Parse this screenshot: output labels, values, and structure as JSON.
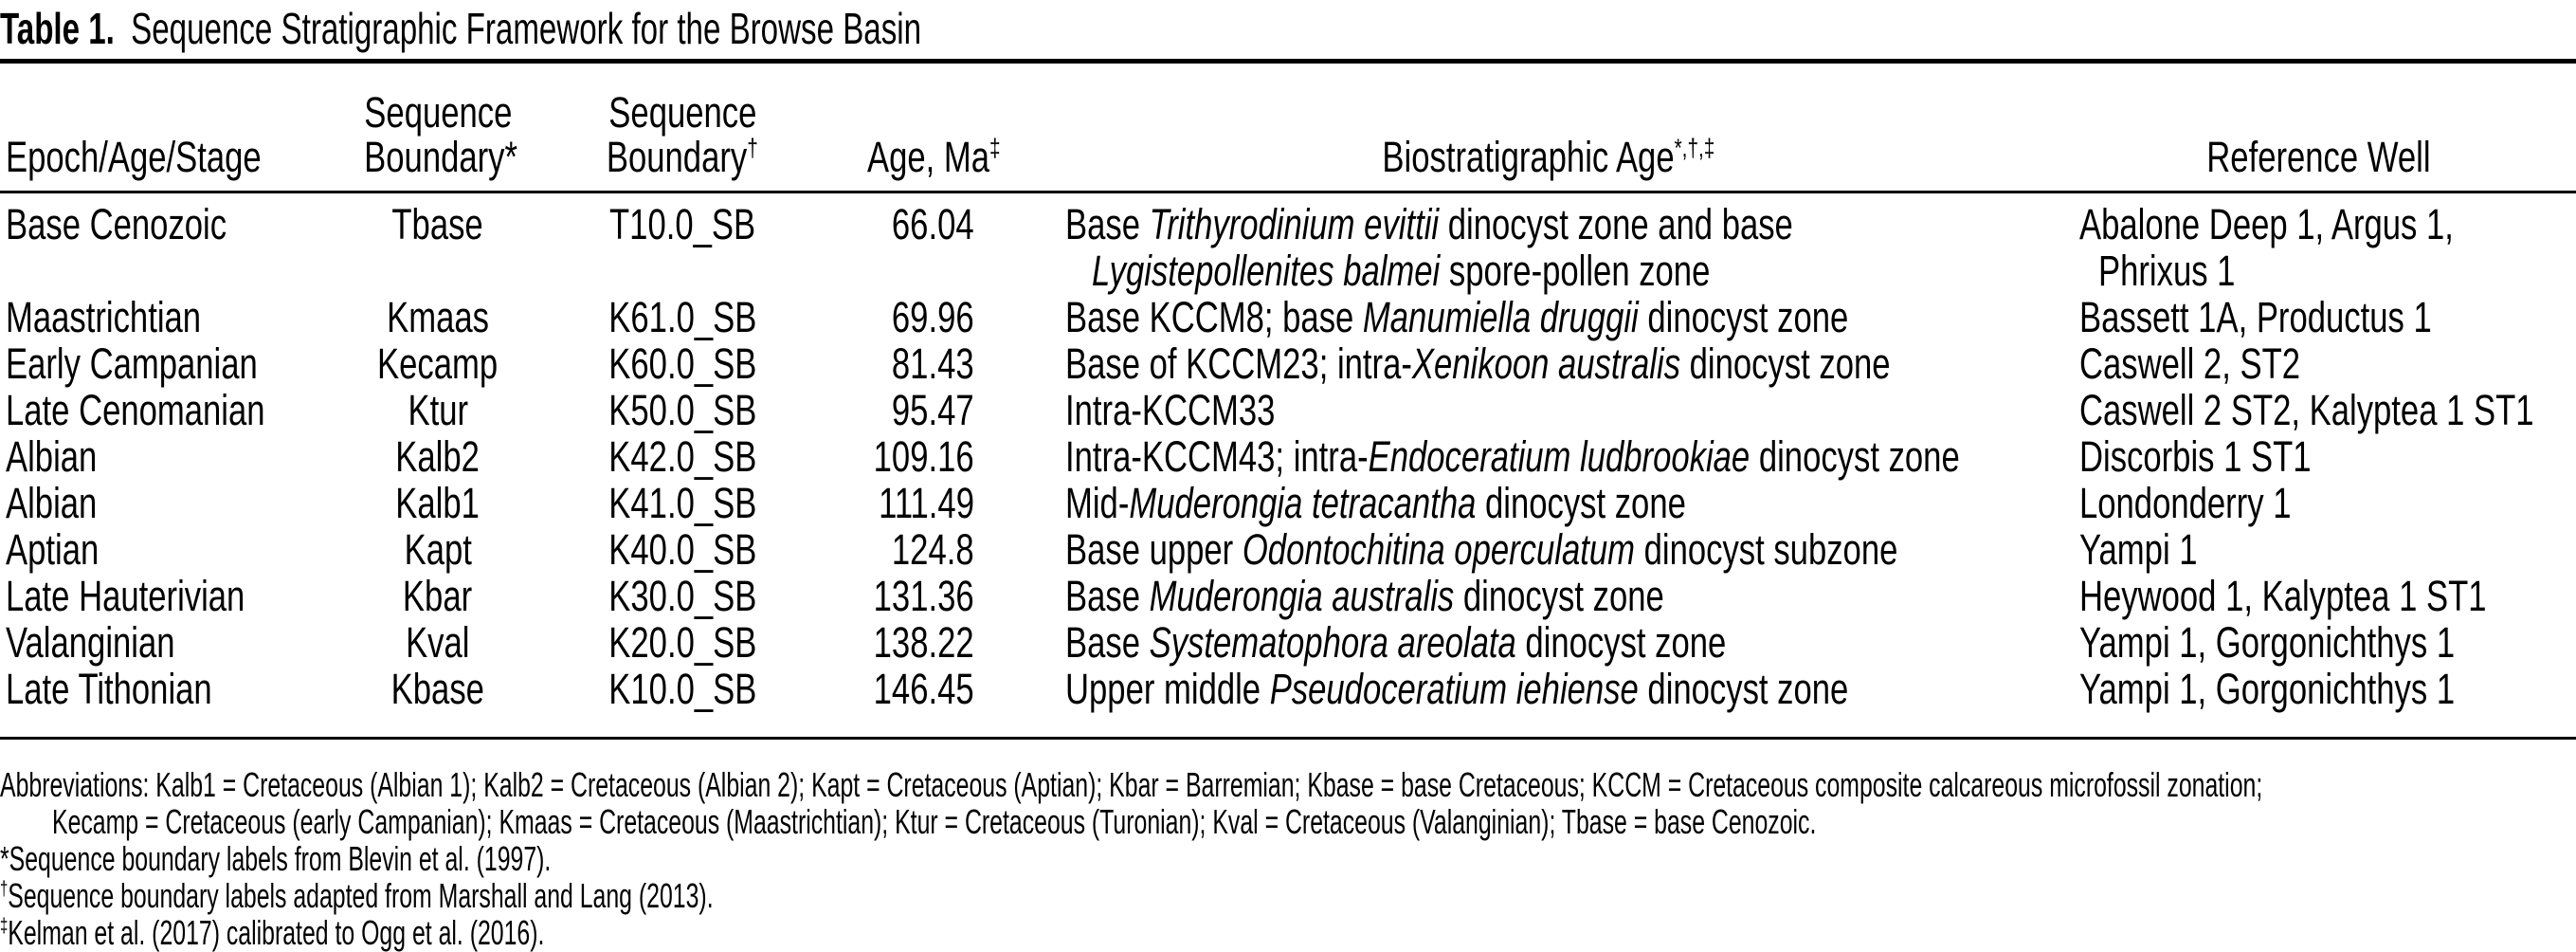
{
  "title": {
    "bold": "Table 1.",
    "text": "Sequence Stratigraphic Framework for the Browse Basin"
  },
  "table": {
    "headers": {
      "epoch": "Epoch/Age/Stage",
      "sb_blevin": {
        "line1": "Sequence",
        "line2": "Boundary*"
      },
      "sb_marshall": {
        "line1": "Sequence",
        "line2": "Boundary",
        "sup": "†"
      },
      "age": {
        "text": "Age, Ma",
        "sup": "‡"
      },
      "bio": {
        "text": "Biostratigraphic Age",
        "sup": "*,†,‡"
      },
      "well": "Reference Well"
    },
    "rows": [
      {
        "epoch": "Base Cenozoic",
        "sb1": "Tbase",
        "sb2": "T10.0_SB",
        "age": "66.04",
        "bio": [
          [
            {
              "t": "Base "
            },
            {
              "t": "Trithyrodinium evittii",
              "i": true
            },
            {
              "t": " dinocyst zone and base"
            }
          ],
          [
            {
              "t": "Lygistepollenites balmei",
              "i": true
            },
            {
              "t": " spore-pollen zone"
            }
          ]
        ],
        "well": [
          "Abalone Deep 1, Argus 1,",
          "Phrixus 1"
        ]
      },
      {
        "epoch": "Maastrichtian",
        "sb1": "Kmaas",
        "sb2": "K61.0_SB",
        "age": "69.96",
        "bio": [
          [
            {
              "t": "Base KCCM8; base "
            },
            {
              "t": "Manumiella druggii",
              "i": true
            },
            {
              "t": " dinocyst zone"
            }
          ]
        ],
        "well": [
          "Bassett 1A, Productus 1"
        ]
      },
      {
        "epoch": "Early Campanian",
        "sb1": "Kecamp",
        "sb2": "K60.0_SB",
        "age": "81.43",
        "bio": [
          [
            {
              "t": "Base of KCCM23; intra-"
            },
            {
              "t": "Xenikoon australis",
              "i": true
            },
            {
              "t": " dinocyst zone"
            }
          ]
        ],
        "well": [
          "Caswell 2, ST2"
        ]
      },
      {
        "epoch": "Late Cenomanian",
        "sb1": "Ktur",
        "sb2": "K50.0_SB",
        "age": "95.47",
        "bio": [
          [
            {
              "t": "Intra-KCCM33"
            }
          ]
        ],
        "well": [
          "Caswell 2 ST2, Kalyptea 1 ST1"
        ]
      },
      {
        "epoch": "Albian",
        "sb1": "Kalb2",
        "sb2": "K42.0_SB",
        "age": "109.16",
        "bio": [
          [
            {
              "t": "Intra-KCCM43; intra-"
            },
            {
              "t": "Endoceratium ludbrookiae",
              "i": true
            },
            {
              "t": " dinocyst zone"
            }
          ]
        ],
        "well": [
          "Discorbis 1 ST1"
        ]
      },
      {
        "epoch": "Albian",
        "sb1": "Kalb1",
        "sb2": "K41.0_SB",
        "age": "111.49",
        "bio": [
          [
            {
              "t": "Mid-"
            },
            {
              "t": "Muderongia tetracantha",
              "i": true
            },
            {
              "t": " dinocyst zone"
            }
          ]
        ],
        "well": [
          "Londonderry 1"
        ]
      },
      {
        "epoch": "Aptian",
        "sb1": "Kapt",
        "sb2": "K40.0_SB",
        "age": "124.8",
        "bio": [
          [
            {
              "t": "Base upper "
            },
            {
              "t": "Odontochitina operculatum",
              "i": true
            },
            {
              "t": " dinocyst subzone"
            }
          ]
        ],
        "well": [
          "Yampi 1"
        ]
      },
      {
        "epoch": "Late Hauterivian",
        "sb1": "Kbar",
        "sb2": "K30.0_SB",
        "age": "131.36",
        "bio": [
          [
            {
              "t": "Base "
            },
            {
              "t": "Muderongia australis",
              "i": true
            },
            {
              "t": " dinocyst zone"
            }
          ]
        ],
        "well": [
          "Heywood 1, Kalyptea 1 ST1"
        ]
      },
      {
        "epoch": "Valanginian",
        "sb1": "Kval",
        "sb2": "K20.0_SB",
        "age": "138.22",
        "bio": [
          [
            {
              "t": "Base "
            },
            {
              "t": "Systematophora areolata",
              "i": true
            },
            {
              "t": " dinocyst zone"
            }
          ]
        ],
        "well": [
          "Yampi 1, Gorgonichthys 1"
        ]
      },
      {
        "epoch": "Late Tithonian",
        "sb1": "Kbase",
        "sb2": "K10.0_SB",
        "age": "146.45",
        "bio": [
          [
            {
              "t": "Upper middle "
            },
            {
              "t": "Pseudoceratium iehiense",
              "i": true
            },
            {
              "t": " dinocyst zone"
            }
          ]
        ],
        "well": [
          "Yampi 1, Gorgonichthys 1"
        ]
      }
    ]
  },
  "footnotes": {
    "abbreviations": {
      "line1": "Abbreviations: Kalb1 = Cretaceous (Albian 1); Kalb2 = Cretaceous (Albian 2); Kapt = Cretaceous (Aptian); Kbar = Barremian; Kbase = base Cretaceous; KCCM = Cretaceous composite calcareous microfossil zonation;",
      "line2": "Kecamp = Cretaceous (early Campanian); Kmaas = Cretaceous (Maastrichtian); Ktur = Cretaceous (Turonian); Kval = Cretaceous (Valanginian); Tbase = base Cenozoic."
    },
    "notes": [
      {
        "marker": "*",
        "text": "Sequence boundary labels from Blevin et al. (1997)."
      },
      {
        "marker": "†",
        "text": "Sequence boundary labels adapted from Marshall and Lang (2013)."
      },
      {
        "marker": "‡",
        "text": "Kelman et al. (2017) calibrated to Ogg et al. (2016)."
      }
    ]
  },
  "colors": {
    "background": "#ffffff",
    "text": "#000000",
    "rule": "#000000"
  }
}
